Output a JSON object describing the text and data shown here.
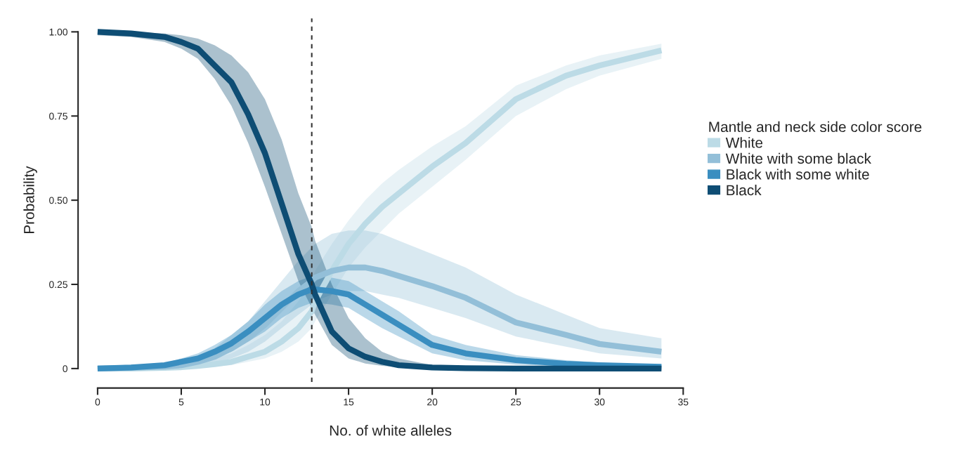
{
  "chart_data": {
    "type": "line",
    "xlabel": "No. of white alleles",
    "ylabel": "Probability",
    "legend_title": "Mantle and neck side color score",
    "x": [
      0,
      2,
      4,
      5,
      6,
      7,
      8,
      9,
      10,
      11,
      12,
      12.8,
      13,
      14,
      15,
      16,
      17,
      18,
      20,
      22,
      25,
      28,
      30,
      33.7
    ],
    "xlim": [
      0,
      35
    ],
    "xticks": [
      0,
      5,
      10,
      15,
      20,
      25,
      30,
      35
    ],
    "ylim": [
      0,
      1
    ],
    "yticks": [
      {
        "value": 0,
        "label": "0"
      },
      {
        "value": 0.25,
        "label": "0.25"
      },
      {
        "value": 0.5,
        "label": "0.50"
      },
      {
        "value": 0.75,
        "label": "0.75"
      },
      {
        "value": 1,
        "label": "1.00"
      }
    ],
    "grid": false,
    "legend": "right",
    "line_style": "solid",
    "marker": "none",
    "ref_lines": [
      {
        "axis": "x",
        "value": 12.8,
        "color": "#333333",
        "line_style": "dashed"
      }
    ],
    "series": [
      {
        "name": "White",
        "color": "#bcdbe6",
        "values": [
          0,
          0,
          0.002,
          0.004,
          0.008,
          0.013,
          0.02,
          0.035,
          0.05,
          0.08,
          0.12,
          0.17,
          0.2,
          0.29,
          0.37,
          0.43,
          0.48,
          0.52,
          0.6,
          0.67,
          0.8,
          0.87,
          0.9,
          0.945
        ],
        "lower": [
          0,
          0,
          0,
          0.001,
          0.003,
          0.006,
          0.01,
          0.02,
          0.03,
          0.05,
          0.08,
          0.12,
          0.14,
          0.22,
          0.3,
          0.36,
          0.41,
          0.46,
          0.54,
          0.62,
          0.75,
          0.83,
          0.87,
          0.92
        ],
        "upper": [
          0.002,
          0.004,
          0.008,
          0.012,
          0.02,
          0.03,
          0.045,
          0.07,
          0.1,
          0.14,
          0.2,
          0.26,
          0.29,
          0.37,
          0.44,
          0.5,
          0.55,
          0.59,
          0.66,
          0.72,
          0.84,
          0.9,
          0.93,
          0.965
        ]
      },
      {
        "name": "White with some black",
        "color": "#93bfd8",
        "values": [
          0,
          0.002,
          0.006,
          0.01,
          0.02,
          0.035,
          0.06,
          0.09,
          0.13,
          0.18,
          0.23,
          0.26,
          0.27,
          0.29,
          0.3,
          0.3,
          0.29,
          0.275,
          0.245,
          0.21,
          0.137,
          0.1,
          0.073,
          0.05
        ],
        "lower": [
          0,
          0,
          0.002,
          0.004,
          0.008,
          0.015,
          0.03,
          0.05,
          0.08,
          0.12,
          0.16,
          0.19,
          0.2,
          0.22,
          0.23,
          0.23,
          0.22,
          0.21,
          0.18,
          0.15,
          0.095,
          0.065,
          0.045,
          0.03
        ],
        "upper": [
          0.003,
          0.006,
          0.015,
          0.025,
          0.04,
          0.06,
          0.1,
          0.14,
          0.2,
          0.26,
          0.32,
          0.36,
          0.37,
          0.4,
          0.41,
          0.41,
          0.4,
          0.38,
          0.34,
          0.3,
          0.22,
          0.16,
          0.12,
          0.09
        ]
      },
      {
        "name": "Black with some white",
        "color": "#3a8ec0",
        "values": [
          0,
          0.003,
          0.01,
          0.02,
          0.03,
          0.05,
          0.075,
          0.11,
          0.15,
          0.19,
          0.22,
          0.235,
          0.235,
          0.23,
          0.22,
          0.19,
          0.16,
          0.13,
          0.07,
          0.045,
          0.025,
          0.014,
          0.01,
          0.005
        ],
        "lower": [
          0,
          0.001,
          0.005,
          0.01,
          0.018,
          0.032,
          0.05,
          0.08,
          0.11,
          0.15,
          0.18,
          0.195,
          0.195,
          0.19,
          0.18,
          0.15,
          0.12,
          0.095,
          0.045,
          0.025,
          0.012,
          0.006,
          0.004,
          0.002
        ],
        "upper": [
          0.002,
          0.006,
          0.016,
          0.03,
          0.045,
          0.07,
          0.1,
          0.14,
          0.19,
          0.23,
          0.26,
          0.275,
          0.275,
          0.27,
          0.26,
          0.23,
          0.2,
          0.17,
          0.1,
          0.07,
          0.04,
          0.025,
          0.018,
          0.01
        ]
      },
      {
        "name": "Black",
        "color": "#0e4d74",
        "values": [
          1,
          0.995,
          0.985,
          0.97,
          0.95,
          0.9,
          0.85,
          0.755,
          0.64,
          0.49,
          0.34,
          0.25,
          0.22,
          0.11,
          0.06,
          0.035,
          0.02,
          0.01,
          0.003,
          0.001,
          0,
          0,
          0,
          0
        ],
        "lower": [
          0.99,
          0.985,
          0.97,
          0.95,
          0.92,
          0.86,
          0.78,
          0.67,
          0.54,
          0.4,
          0.26,
          0.18,
          0.16,
          0.07,
          0.03,
          0.015,
          0.008,
          0.004,
          0.001,
          0,
          0,
          0,
          0,
          0
        ],
        "upper": [
          1,
          1,
          0.995,
          0.99,
          0.98,
          0.96,
          0.93,
          0.88,
          0.8,
          0.68,
          0.52,
          0.42,
          0.38,
          0.25,
          0.15,
          0.09,
          0.05,
          0.03,
          0.01,
          0.004,
          0.001,
          0,
          0,
          0
        ]
      }
    ]
  }
}
